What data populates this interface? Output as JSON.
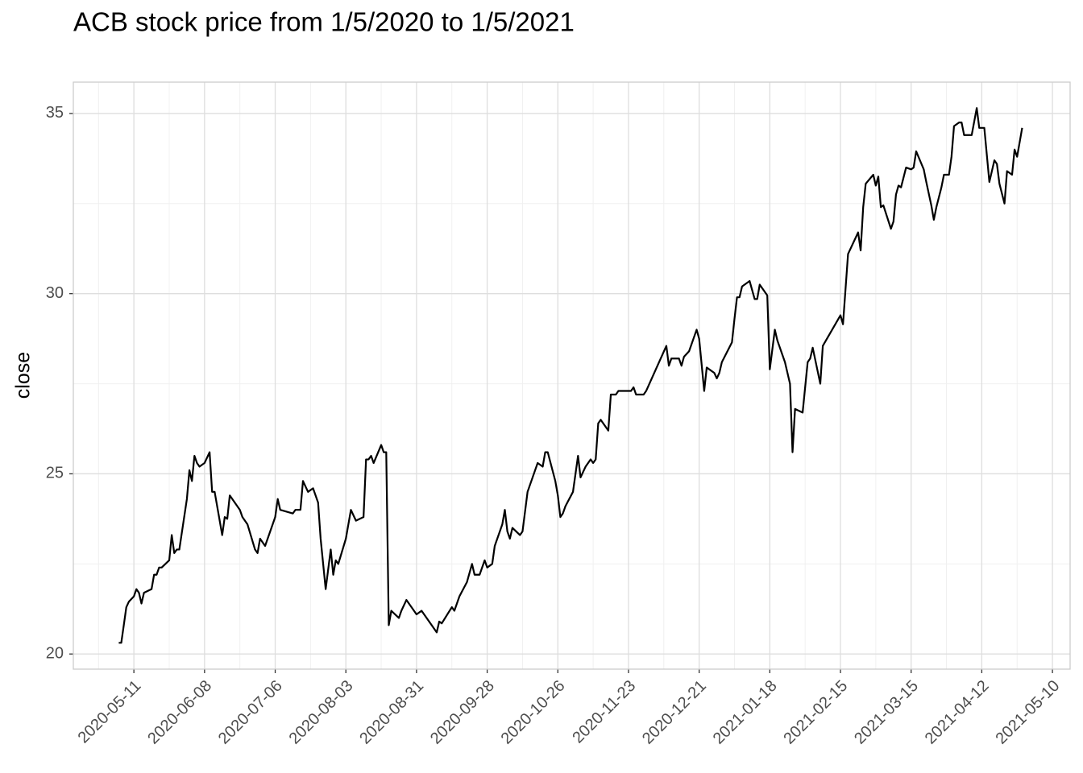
{
  "chart_data": {
    "type": "line",
    "title": "ACB stock price from 1/5/2020 to 1/5/2021",
    "y_label": "close",
    "color": "#000000",
    "grid": true,
    "xlim": [
      "2020-04-17",
      "2021-05-17"
    ],
    "xticks": [
      "2020-05-11",
      "2020-06-08",
      "2020-07-06",
      "2020-08-03",
      "2020-08-31",
      "2020-09-28",
      "2020-10-26",
      "2020-11-23",
      "2020-12-21",
      "2021-01-18",
      "2021-02-15",
      "2021-03-15",
      "2021-04-12",
      "2021-05-10"
    ],
    "ylim": [
      19.58,
      35.87
    ],
    "yticks": [
      20,
      25,
      30,
      35
    ],
    "x": [
      "2020-05-05",
      "2020-05-06",
      "2020-05-07",
      "2020-05-08",
      "2020-05-09",
      "2020-05-11",
      "2020-05-12",
      "2020-05-13",
      "2020-05-14",
      "2020-05-15",
      "2020-05-18",
      "2020-05-19",
      "2020-05-20",
      "2020-05-21",
      "2020-05-22",
      "2020-05-25",
      "2020-05-26",
      "2020-05-27",
      "2020-05-28",
      "2020-05-29",
      "2020-06-01",
      "2020-06-02",
      "2020-06-03",
      "2020-06-04",
      "2020-06-05",
      "2020-06-06",
      "2020-06-08",
      "2020-06-10",
      "2020-06-11",
      "2020-06-12",
      "2020-06-15",
      "2020-06-16",
      "2020-06-17",
      "2020-06-18",
      "2020-06-22",
      "2020-06-23",
      "2020-06-25",
      "2020-06-28",
      "2020-06-29",
      "2020-06-30",
      "2020-07-02",
      "2020-07-05",
      "2020-07-06",
      "2020-07-07",
      "2020-07-08",
      "2020-07-13",
      "2020-07-14",
      "2020-07-16",
      "2020-07-17",
      "2020-07-19",
      "2020-07-21",
      "2020-07-23",
      "2020-07-24",
      "2020-07-26",
      "2020-07-28",
      "2020-07-29",
      "2020-07-30",
      "2020-07-31",
      "2020-08-03",
      "2020-08-05",
      "2020-08-07",
      "2020-08-10",
      "2020-08-11",
      "2020-08-12",
      "2020-08-13",
      "2020-08-14",
      "2020-08-17",
      "2020-08-18",
      "2020-08-19",
      "2020-08-20",
      "2020-08-21",
      "2020-08-24",
      "2020-08-25",
      "2020-08-27",
      "2020-08-31",
      "2020-09-02",
      "2020-09-06",
      "2020-09-08",
      "2020-09-09",
      "2020-09-10",
      "2020-09-14",
      "2020-09-15",
      "2020-09-17",
      "2020-09-20",
      "2020-09-22",
      "2020-09-23",
      "2020-09-25",
      "2020-09-27",
      "2020-09-28",
      "2020-09-30",
      "2020-10-01",
      "2020-10-04",
      "2020-10-05",
      "2020-10-06",
      "2020-10-07",
      "2020-10-08",
      "2020-10-11",
      "2020-10-12",
      "2020-10-14",
      "2020-10-18",
      "2020-10-20",
      "2020-10-21",
      "2020-10-22",
      "2020-10-25",
      "2020-10-26",
      "2020-10-27",
      "2020-10-28",
      "2020-10-29",
      "2020-11-01",
      "2020-11-03",
      "2020-11-04",
      "2020-11-06",
      "2020-11-08",
      "2020-11-09",
      "2020-11-10",
      "2020-11-11",
      "2020-11-12",
      "2020-11-15",
      "2020-11-16",
      "2020-11-18",
      "2020-11-19",
      "2020-11-24",
      "2020-11-25",
      "2020-11-26",
      "2020-11-29",
      "2020-11-30",
      "2020-12-08",
      "2020-12-09",
      "2020-12-10",
      "2020-12-13",
      "2020-12-14",
      "2020-12-15",
      "2020-12-17",
      "2020-12-20",
      "2020-12-21",
      "2020-12-23",
      "2020-12-24",
      "2020-12-27",
      "2020-12-28",
      "2020-12-29",
      "2020-12-30",
      "2021-01-03",
      "2021-01-04",
      "2021-01-05",
      "2021-01-06",
      "2021-01-07",
      "2021-01-10",
      "2021-01-12",
      "2021-01-13",
      "2021-01-14",
      "2021-01-17",
      "2021-01-18",
      "2021-01-20",
      "2021-01-21",
      "2021-01-24",
      "2021-01-26",
      "2021-01-27",
      "2021-01-28",
      "2021-01-31",
      "2021-02-02",
      "2021-02-03",
      "2021-02-04",
      "2021-02-07",
      "2021-02-08",
      "2021-02-15",
      "2021-02-16",
      "2021-02-18",
      "2021-02-22",
      "2021-02-23",
      "2021-02-24",
      "2021-02-25",
      "2021-02-28",
      "2021-03-01",
      "2021-03-02",
      "2021-03-03",
      "2021-03-04",
      "2021-03-07",
      "2021-03-08",
      "2021-03-09",
      "2021-03-10",
      "2021-03-11",
      "2021-03-13",
      "2021-03-15",
      "2021-03-16",
      "2021-03-17",
      "2021-03-20",
      "2021-03-21",
      "2021-03-23",
      "2021-03-24",
      "2021-03-25",
      "2021-03-27",
      "2021-03-28",
      "2021-03-30",
      "2021-03-31",
      "2021-04-01",
      "2021-04-03",
      "2021-04-04",
      "2021-04-05",
      "2021-04-08",
      "2021-04-10",
      "2021-04-11",
      "2021-04-13",
      "2021-04-15",
      "2021-04-17",
      "2021-04-18",
      "2021-04-19",
      "2021-04-21",
      "2021-04-22",
      "2021-04-24",
      "2021-04-25",
      "2021-04-26",
      "2021-04-28"
    ],
    "values": [
      20.31,
      20.31,
      20.8,
      21.3,
      21.45,
      21.6,
      21.8,
      21.7,
      21.4,
      21.7,
      21.8,
      22.2,
      22.2,
      22.4,
      22.4,
      22.6,
      23.3,
      22.8,
      22.9,
      22.9,
      24.3,
      25.1,
      24.8,
      25.5,
      25.3,
      25.2,
      25.3,
      25.6,
      24.5,
      24.5,
      23.3,
      23.8,
      23.75,
      24.4,
      24.0,
      23.8,
      23.6,
      22.9,
      22.8,
      23.2,
      23.0,
      23.6,
      23.8,
      24.3,
      24.0,
      23.9,
      24.0,
      24.0,
      24.8,
      24.5,
      24.6,
      24.2,
      23.2,
      21.8,
      22.9,
      22.2,
      22.6,
      22.5,
      23.2,
      24.0,
      23.7,
      23.8,
      25.4,
      25.4,
      25.5,
      25.3,
      25.8,
      25.6,
      25.6,
      20.8,
      21.2,
      21.0,
      21.2,
      21.5,
      21.1,
      21.2,
      20.8,
      20.6,
      20.9,
      20.85,
      21.3,
      21.2,
      21.6,
      22.0,
      22.5,
      22.2,
      22.2,
      22.6,
      22.4,
      22.5,
      23.0,
      23.6,
      24.0,
      23.4,
      23.2,
      23.5,
      23.3,
      23.4,
      24.5,
      25.3,
      25.2,
      25.6,
      25.6,
      24.8,
      24.4,
      23.8,
      23.9,
      24.1,
      24.5,
      25.5,
      24.9,
      25.2,
      25.4,
      25.3,
      25.4,
      26.4,
      26.5,
      26.2,
      27.2,
      27.2,
      27.3,
      27.3,
      27.4,
      27.2,
      27.2,
      27.3,
      28.55,
      28.0,
      28.2,
      28.2,
      28.0,
      28.25,
      28.4,
      29.0,
      28.75,
      27.3,
      27.95,
      27.8,
      27.65,
      27.8,
      28.1,
      28.65,
      29.3,
      29.9,
      29.9,
      30.2,
      30.35,
      29.85,
      29.85,
      30.25,
      29.95,
      27.9,
      29.0,
      28.7,
      28.1,
      27.5,
      25.6,
      26.8,
      26.7,
      28.1,
      28.2,
      28.5,
      27.5,
      28.55,
      29.4,
      29.15,
      31.1,
      31.7,
      31.2,
      32.4,
      33.05,
      33.3,
      33.0,
      33.25,
      32.4,
      32.45,
      31.8,
      32.0,
      32.75,
      33.0,
      32.95,
      33.5,
      33.45,
      33.5,
      33.95,
      33.45,
      33.1,
      32.45,
      32.05,
      32.4,
      32.95,
      33.3,
      33.3,
      33.8,
      34.65,
      34.75,
      34.75,
      34.4,
      34.4,
      35.15,
      34.6,
      34.6,
      33.1,
      33.7,
      33.6,
      33.05,
      32.5,
      33.4,
      33.3,
      34.0,
      33.8,
      34.6
    ]
  }
}
